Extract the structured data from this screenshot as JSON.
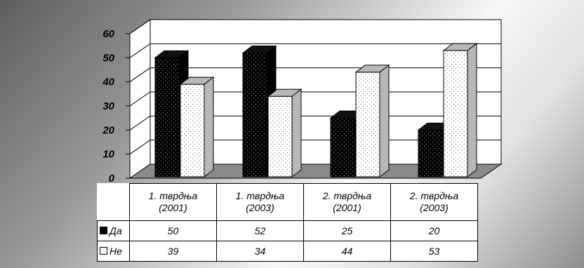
{
  "chart_data": {
    "type": "bar",
    "categories": [
      [
        "1. тврдња",
        "(2001)"
      ],
      [
        "1. тврдња",
        "(2003)"
      ],
      [
        "2. тврдња",
        "(2001)"
      ],
      [
        "2. тврдња",
        "(2003)"
      ]
    ],
    "series": [
      {
        "name": "Да",
        "values": [
          50,
          52,
          25,
          20
        ],
        "color": "#000000"
      },
      {
        "name": "Не",
        "values": [
          39,
          34,
          44,
          53
        ],
        "color": "#ffffff"
      }
    ],
    "yticks": [
      "0",
      "10",
      "20",
      "30",
      "40",
      "50",
      "60"
    ],
    "ylim": [
      0,
      60
    ],
    "grid": true,
    "legend": "data-table"
  }
}
